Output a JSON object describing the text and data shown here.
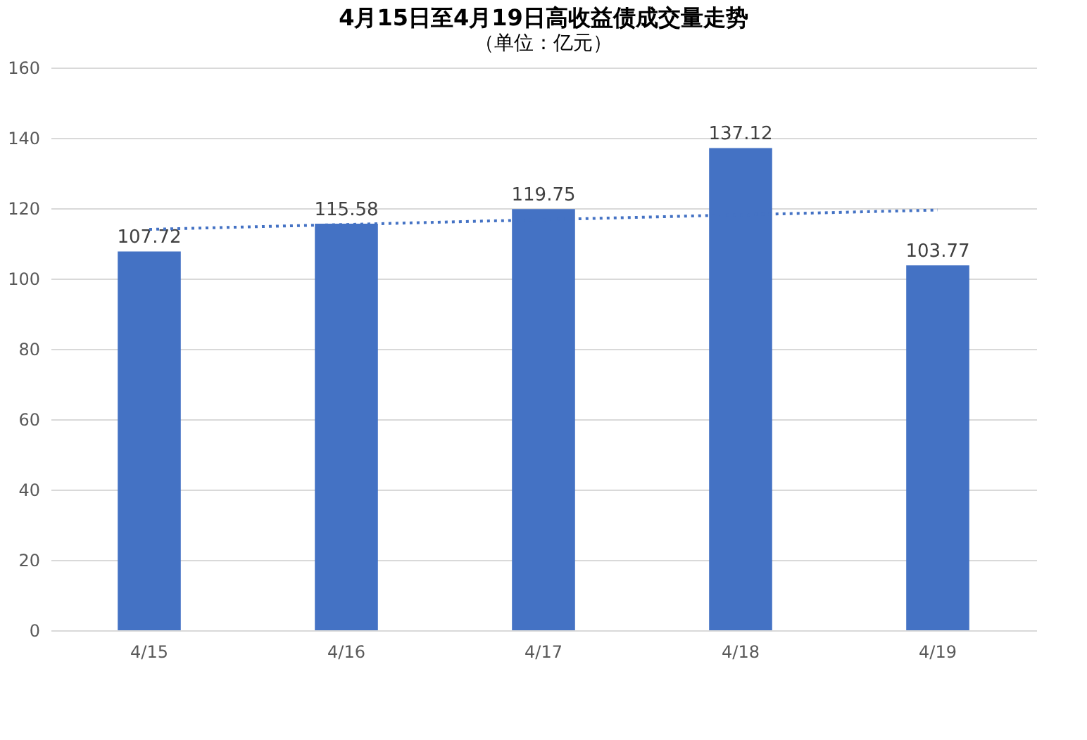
{
  "chart_data": {
    "type": "bar",
    "title": "4月15日至4月19日高收益债成交量走势",
    "subtitle": "（单位：亿元）",
    "categories": [
      "4/15",
      "4/16",
      "4/17",
      "4/18",
      "4/19"
    ],
    "series": [
      {
        "color": "#4472c4",
        "values": [
          107.72,
          115.58,
          119.75,
          137.12,
          103.77
        ],
        "value_labels": [
          "107.72",
          "115.58",
          "119.75",
          "137.12",
          "103.77"
        ]
      },
      {
        "type": "line",
        "color": "#4472c4",
        "line_style": "dotted",
        "x": [
          "4/15",
          "4/19"
        ],
        "values": [
          114,
          119.5
        ]
      }
    ],
    "ylim": [
      0,
      160
    ],
    "yticks": [
      0,
      20,
      40,
      60,
      80,
      100,
      120,
      140,
      160
    ],
    "grid": "y"
  }
}
